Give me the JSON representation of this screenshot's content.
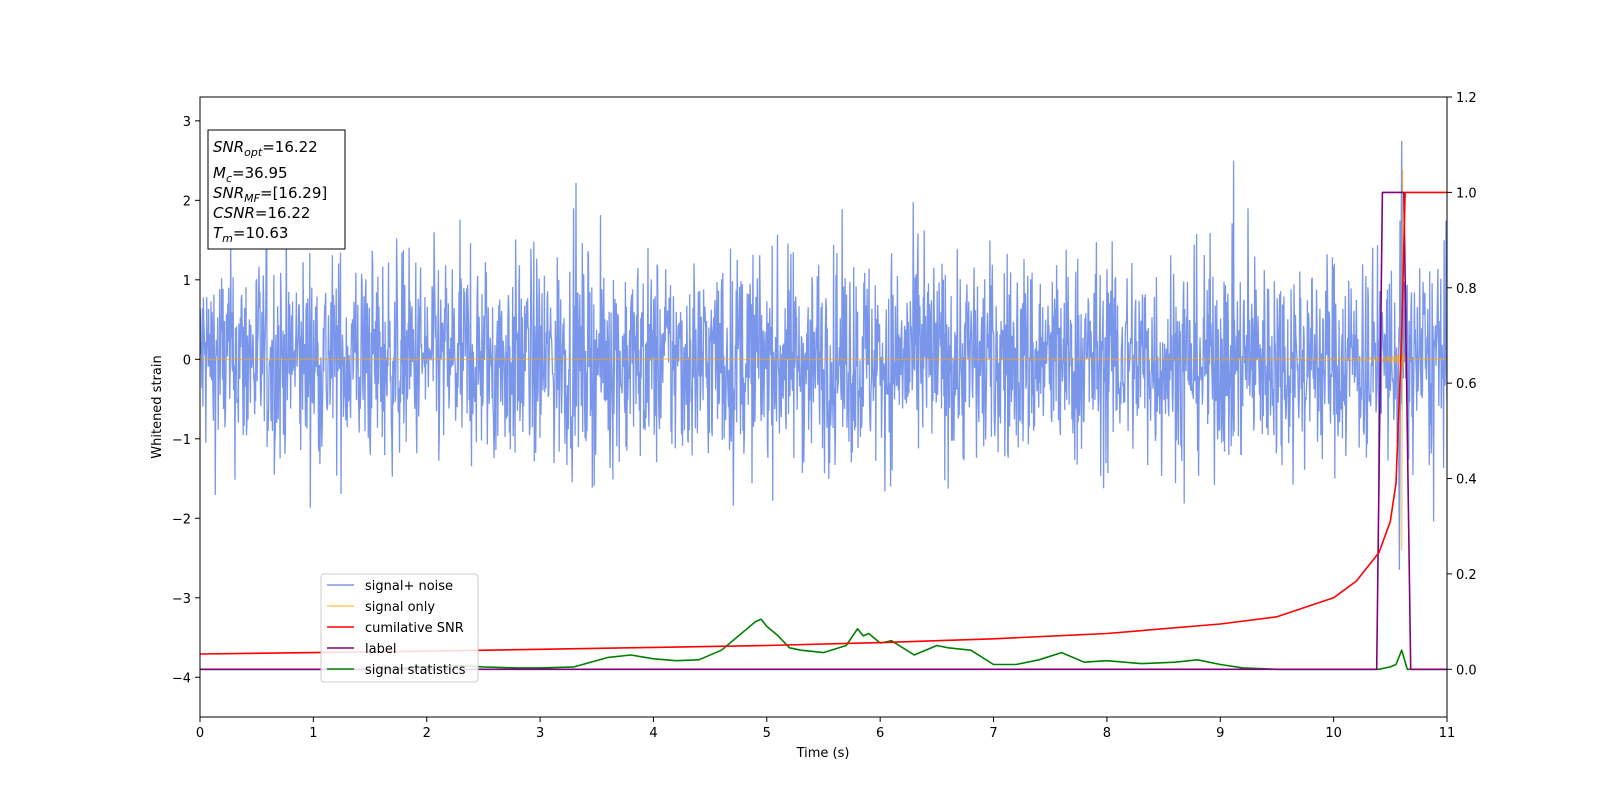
{
  "chart_data": {
    "type": "line",
    "xlabel": "Time (s)",
    "ylabel": "Whitened strain",
    "xlim": [
      0,
      11
    ],
    "ylim": [
      -4.5,
      3.3
    ],
    "y2lim": [
      -0.1,
      1.2
    ],
    "x_ticks": [
      "0",
      "1",
      "2",
      "3",
      "4",
      "5",
      "6",
      "7",
      "8",
      "9",
      "10",
      "11"
    ],
    "y_ticks": [
      "3",
      "2",
      "1",
      "0",
      "−1",
      "−2",
      "−3",
      "−4"
    ],
    "y2_ticks": [
      "1.2",
      "1.0",
      "0.8",
      "0.6",
      "0.4",
      "0.2",
      "0.0"
    ],
    "grid": false,
    "legend_position": "lower-left",
    "annotation": {
      "snr_opt": {
        "base": "SNR",
        "sub": "opt",
        "value": "=16.22"
      },
      "mc": {
        "base": "M",
        "sub": "c",
        "value": "=36.95"
      },
      "snr_mf": {
        "base": "SNR",
        "sub": "MF",
        "value": "=[16.29]"
      },
      "csnr": {
        "base": "CSNR",
        "value": "=16.22"
      },
      "tm": {
        "base": "T",
        "sub": "m",
        "value": "=10.63"
      }
    },
    "series": [
      {
        "name": "signal+ noise",
        "color": "#4169e1",
        "axis": "left",
        "noise_amplitude": 1.5,
        "peak": {
          "x": 10.6,
          "y": 2.75
        },
        "trough": {
          "x": 10.58,
          "y": -2.65
        }
      },
      {
        "name": "signal only",
        "color": "#ffa500",
        "axis": "left",
        "peak": {
          "x": 10.61,
          "y": 2.38
        },
        "trough": {
          "x": 10.6,
          "y": -2.4
        }
      },
      {
        "name": "cumilative SNR",
        "color": "#ff0000",
        "axis": "right",
        "x": [
          0,
          1,
          2,
          3,
          4,
          5,
          6,
          7,
          8,
          9,
          9.5,
          10,
          10.2,
          10.4,
          10.5,
          10.55,
          10.6,
          10.63,
          11
        ],
        "y": [
          0.032,
          0.035,
          0.038,
          0.042,
          0.046,
          0.05,
          0.056,
          0.064,
          0.075,
          0.095,
          0.11,
          0.15,
          0.185,
          0.245,
          0.31,
          0.39,
          0.7,
          1.0,
          1.0
        ]
      },
      {
        "name": "label",
        "color": "#800080",
        "axis": "right",
        "x": [
          0,
          10.38,
          10.43,
          10.62,
          10.68,
          11
        ],
        "y": [
          0,
          0,
          1.0,
          1.0,
          0,
          0
        ]
      },
      {
        "name": "signal statistics",
        "color": "#008000",
        "axis": "right",
        "x": [
          0,
          0.5,
          1,
          1.5,
          2,
          2.3,
          2.5,
          2.8,
          3,
          3.3,
          3.6,
          3.8,
          4,
          4.2,
          4.4,
          4.6,
          4.8,
          4.9,
          4.95,
          5.0,
          5.1,
          5.2,
          5.3,
          5.5,
          5.7,
          5.8,
          5.85,
          5.9,
          6.0,
          6.1,
          6.3,
          6.5,
          6.6,
          6.8,
          7.0,
          7.2,
          7.4,
          7.6,
          7.8,
          8.0,
          8.3,
          8.6,
          8.8,
          9.0,
          9.2,
          9.5,
          10,
          10.4,
          10.5,
          10.55,
          10.6,
          10.65,
          11
        ],
        "y": [
          0,
          0,
          0,
          0,
          0.005,
          0.008,
          0.005,
          0.003,
          0.003,
          0.005,
          0.025,
          0.03,
          0.022,
          0.018,
          0.02,
          0.04,
          0.08,
          0.1,
          0.105,
          0.09,
          0.07,
          0.045,
          0.04,
          0.035,
          0.05,
          0.085,
          0.07,
          0.075,
          0.055,
          0.06,
          0.03,
          0.05,
          0.045,
          0.04,
          0.01,
          0.01,
          0.02,
          0.035,
          0.015,
          0.018,
          0.012,
          0.015,
          0.02,
          0.01,
          0.003,
          0.0,
          0.0,
          0.0,
          0.005,
          0.01,
          0.04,
          0.0,
          0.0
        ]
      }
    ]
  }
}
